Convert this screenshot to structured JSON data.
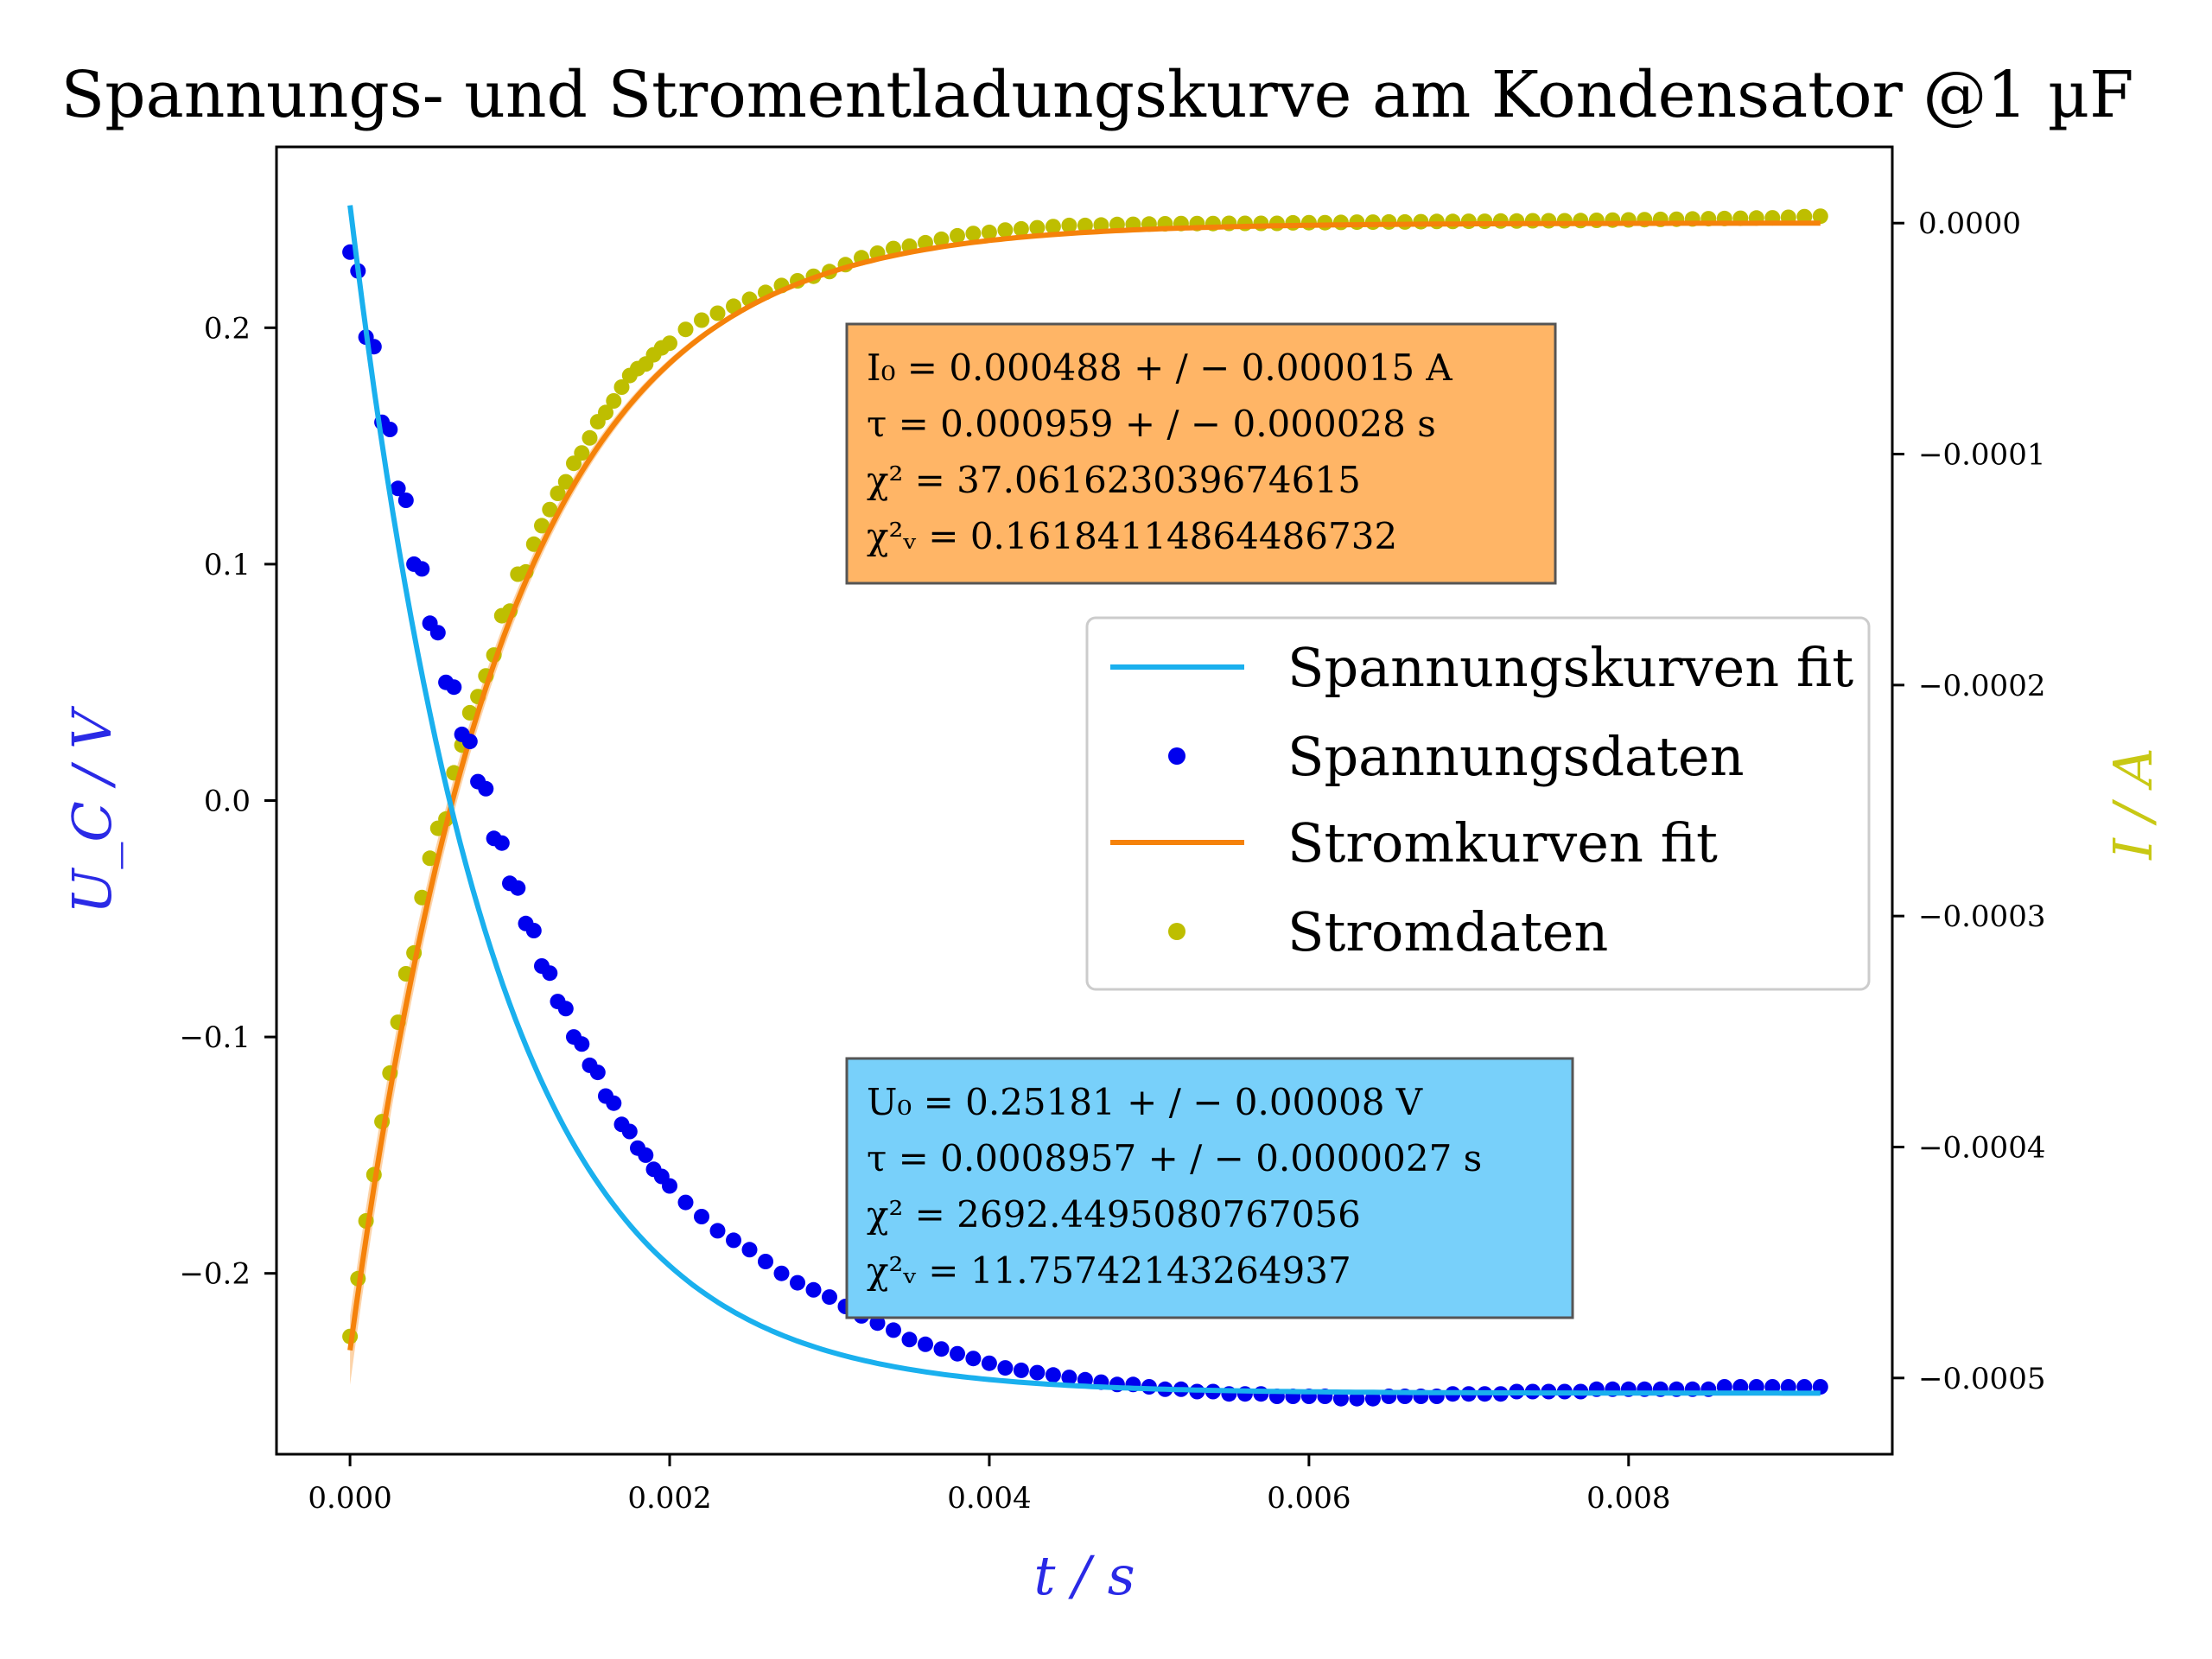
{
  "chart_data": {
    "type": "scatter",
    "title": "Spannungs- und Stromentladungskurve am Kondensator @1 µF",
    "xlabel": "t / s",
    "ylabel_left": "U_C / V",
    "ylabel_right": "I / A",
    "xlim": [
      -0.00046,
      0.00965
    ],
    "ylim_left": [
      -0.2765,
      0.2765
    ],
    "ylim_right": [
      -0.000533,
      3.3e-05
    ],
    "x_ticks": [
      "0.000",
      "0.002",
      "0.004",
      "0.006",
      "0.008"
    ],
    "x_tick_values": [
      0,
      0.002,
      0.004,
      0.006,
      0.008
    ],
    "y_left_ticks": [
      "0.2",
      "0.1",
      "0.0",
      "−0.1",
      "−0.2"
    ],
    "y_left_tick_values": [
      0.2,
      0.1,
      0.0,
      -0.1,
      -0.2
    ],
    "y_right_ticks": [
      "0.0000",
      "−0.0001",
      "−0.0002",
      "−0.0003",
      "−0.0004",
      "−0.0005"
    ],
    "y_right_tick_values": [
      0,
      -0.0001,
      -0.0002,
      -0.0003,
      -0.0004,
      -0.0005
    ],
    "colors": {
      "voltage_fit": "#1ab0ee",
      "voltage_data": "#0000ee",
      "current_fit": "#f5820a",
      "current_data": "#bebe00",
      "xlabel": "#2a2ae6",
      "ylabel_left": "#2a2ae6",
      "ylabel_right": "#c8c814",
      "box_current": "#ffb566",
      "box_voltage": "#78d0fa"
    },
    "series": [
      {
        "name": "Spannungskurven fit",
        "kind": "line",
        "axis": "left",
        "model": "exponential decay",
        "x_range": [
          0,
          0.0092
        ],
        "U0": 0.25181,
        "tau": 0.0008957,
        "offset": -0.2507
      },
      {
        "name": "Spannungsdaten",
        "kind": "scatter",
        "axis": "left",
        "x": [
          0.0,
          5e-05,
          0.0001,
          0.00015,
          0.0002,
          0.00025,
          0.0003,
          0.00035,
          0.0004,
          0.00045,
          0.0005,
          0.00055,
          0.0006,
          0.00065,
          0.0007,
          0.00075,
          0.0008,
          0.00085,
          0.0009,
          0.00095,
          0.001,
          0.00105,
          0.0011,
          0.00115,
          0.0012,
          0.00125,
          0.0013,
          0.00135,
          0.0014,
          0.00145,
          0.0015,
          0.00155,
          0.0016,
          0.00165,
          0.0017,
          0.00175,
          0.0018,
          0.00185,
          0.0019,
          0.00195,
          0.002,
          0.0021,
          0.0022,
          0.0023,
          0.0024,
          0.0025,
          0.0026,
          0.0027,
          0.0028,
          0.0029,
          0.003,
          0.0031,
          0.0032,
          0.0033,
          0.0034,
          0.0035,
          0.0036,
          0.0037,
          0.0038,
          0.0039,
          0.004,
          0.0041,
          0.0042,
          0.0043,
          0.0044,
          0.0045,
          0.0046,
          0.0047,
          0.0048,
          0.0049,
          0.005,
          0.0051,
          0.0052,
          0.0053,
          0.0054,
          0.0055,
          0.0056,
          0.0057,
          0.0058,
          0.0059,
          0.006,
          0.0061,
          0.0062,
          0.0063,
          0.0064,
          0.0065,
          0.0066,
          0.0067,
          0.0068,
          0.0069,
          0.007,
          0.0071,
          0.0072,
          0.0073,
          0.0074,
          0.0075,
          0.0076,
          0.0077,
          0.0078,
          0.0079,
          0.008,
          0.0081,
          0.0082,
          0.0083,
          0.0084,
          0.0085,
          0.0086,
          0.0087,
          0.0088,
          0.0089,
          0.009,
          0.0091,
          0.0092
        ],
        "y": [
          0.232,
          0.224,
          0.196,
          0.192,
          0.16,
          0.157,
          0.132,
          0.127,
          0.1,
          0.098,
          0.075,
          0.071,
          0.05,
          0.048,
          0.028,
          0.025,
          0.008,
          0.005,
          -0.016,
          -0.018,
          -0.035,
          -0.037,
          -0.052,
          -0.055,
          -0.07,
          -0.073,
          -0.085,
          -0.088,
          -0.1,
          -0.103,
          -0.112,
          -0.115,
          -0.125,
          -0.128,
          -0.137,
          -0.14,
          -0.147,
          -0.15,
          -0.156,
          -0.159,
          -0.163,
          -0.17,
          -0.176,
          -0.182,
          -0.186,
          -0.19,
          -0.195,
          -0.2,
          -0.204,
          -0.207,
          -0.21,
          -0.214,
          -0.218,
          -0.221,
          -0.224,
          -0.228,
          -0.23,
          -0.232,
          -0.234,
          -0.236,
          -0.238,
          -0.24,
          -0.241,
          -0.242,
          -0.243,
          -0.244,
          -0.245,
          -0.246,
          -0.247,
          -0.247,
          -0.248,
          -0.249,
          -0.249,
          -0.25,
          -0.25,
          -0.251,
          -0.251,
          -0.251,
          -0.252,
          -0.252,
          -0.252,
          -0.252,
          -0.253,
          -0.253,
          -0.253,
          -0.252,
          -0.252,
          -0.252,
          -0.252,
          -0.251,
          -0.251,
          -0.251,
          -0.251,
          -0.25,
          -0.25,
          -0.25,
          -0.25,
          -0.25,
          -0.249,
          -0.249,
          -0.249,
          -0.249,
          -0.249,
          -0.249,
          -0.249,
          -0.249,
          -0.248,
          -0.248,
          -0.248,
          -0.248,
          -0.248,
          -0.248,
          -0.248
        ]
      },
      {
        "name": "Stromkurven fit",
        "kind": "line",
        "axis": "right",
        "model": "exponential decay",
        "x_range": [
          0,
          0.0092
        ],
        "I0": 0.000488,
        "tau": 0.000959,
        "offset": 0.0
      },
      {
        "name": "Stromdaten",
        "kind": "scatter",
        "axis": "right",
        "x": [
          0.0,
          5e-05,
          0.0001,
          0.00015,
          0.0002,
          0.00025,
          0.0003,
          0.00035,
          0.0004,
          0.00045,
          0.0005,
          0.00055,
          0.0006,
          0.00065,
          0.0007,
          0.00075,
          0.0008,
          0.00085,
          0.0009,
          0.00095,
          0.001,
          0.00105,
          0.0011,
          0.00115,
          0.0012,
          0.00125,
          0.0013,
          0.00135,
          0.0014,
          0.00145,
          0.0015,
          0.00155,
          0.0016,
          0.00165,
          0.0017,
          0.00175,
          0.0018,
          0.00185,
          0.0019,
          0.00195,
          0.002,
          0.0021,
          0.0022,
          0.0023,
          0.0024,
          0.0025,
          0.0026,
          0.0027,
          0.0028,
          0.0029,
          0.003,
          0.0031,
          0.0032,
          0.0033,
          0.0034,
          0.0035,
          0.0036,
          0.0037,
          0.0038,
          0.0039,
          0.004,
          0.0041,
          0.0042,
          0.0043,
          0.0044,
          0.0045,
          0.0046,
          0.0047,
          0.0048,
          0.0049,
          0.005,
          0.0051,
          0.0052,
          0.0053,
          0.0054,
          0.0055,
          0.0056,
          0.0057,
          0.0058,
          0.0059,
          0.006,
          0.0061,
          0.0062,
          0.0063,
          0.0064,
          0.0065,
          0.0066,
          0.0067,
          0.0068,
          0.0069,
          0.007,
          0.0071,
          0.0072,
          0.0073,
          0.0074,
          0.0075,
          0.0076,
          0.0077,
          0.0078,
          0.0079,
          0.008,
          0.0081,
          0.0082,
          0.0083,
          0.0084,
          0.0085,
          0.0086,
          0.0087,
          0.0088,
          0.0089,
          0.009,
          0.0091,
          0.0092
        ],
        "y": [
          -0.000482,
          -0.000457,
          -0.000432,
          -0.000412,
          -0.000389,
          -0.000368,
          -0.000346,
          -0.000325,
          -0.000316,
          -0.000292,
          -0.000275,
          -0.000262,
          -0.000258,
          -0.000238,
          -0.000226,
          -0.000212,
          -0.000205,
          -0.000196,
          -0.000187,
          -0.00017,
          -0.000168,
          -0.000152,
          -0.000151,
          -0.000139,
          -0.000131,
          -0.000124,
          -0.000117,
          -0.000112,
          -0.000104,
          -9.95e-05,
          -9.3e-05,
          -8.6e-05,
          -8.2e-05,
          -7.7e-05,
          -7.1e-05,
          -6.6e-05,
          -6.3e-05,
          -6.1e-05,
          -5.7e-05,
          -5.4e-05,
          -5.2e-05,
          -4.6e-05,
          -4.2e-05,
          -3.9e-05,
          -3.6e-05,
          -3.3e-05,
          -3e-05,
          -2.7e-05,
          -2.5e-05,
          -2.3e-05,
          -2.1e-05,
          -1.8e-05,
          -1.5e-05,
          -1.3e-05,
          -1.1e-05,
          -1e-05,
          -8.5e-06,
          -7e-06,
          -5.5e-06,
          -4.5e-06,
          -4e-06,
          -3e-06,
          -2.5e-06,
          -2e-06,
          -1.5e-06,
          -1e-06,
          -1e-06,
          -8e-07,
          -6e-07,
          -5e-07,
          -4e-07,
          -3e-07,
          -2e-07,
          -2e-07,
          -2e-07,
          -1e-07,
          -1e-07,
          -1e-07,
          -1e-07,
          1e-07,
          2e-07,
          2e-07,
          3e-07,
          4e-07,
          4e-07,
          5e-07,
          5e-07,
          6e-07,
          7e-07,
          7e-07,
          8e-07,
          8e-07,
          9e-07,
          9e-07,
          1e-06,
          1e-06,
          1e-06,
          1.1e-06,
          1.2e-06,
          1.3e-06,
          1.4e-06,
          1.5e-06,
          1.6e-06,
          1.7e-06,
          1.8e-06,
          1.9e-06,
          2e-06,
          2.1e-06,
          2.2e-06,
          2.3e-06,
          2.5e-06,
          2.8e-06,
          3e-06
        ]
      }
    ],
    "legend": {
      "placement": "center-right",
      "entries": [
        "Spannungskurven fit",
        "Spannungsdaten",
        "Stromkurven fit",
        "Stromdaten"
      ]
    },
    "annotations": {
      "current_box": [
        "I₀ = 0.000488 + / − 0.000015 A",
        "τ = 0.000959 + / − 0.000028 s",
        "χ² = 37.061623039674615",
        "χ²ᵥ = 0.16184114864486732"
      ],
      "voltage_box": [
        "U₀ = 0.25181 + / − 0.00008 V",
        "τ = 0.0008957 + / − 0.0000027 s",
        "χ² = 2692.4495080767056",
        "χ²ᵥ = 11.75742143264937"
      ]
    },
    "grid": false
  }
}
